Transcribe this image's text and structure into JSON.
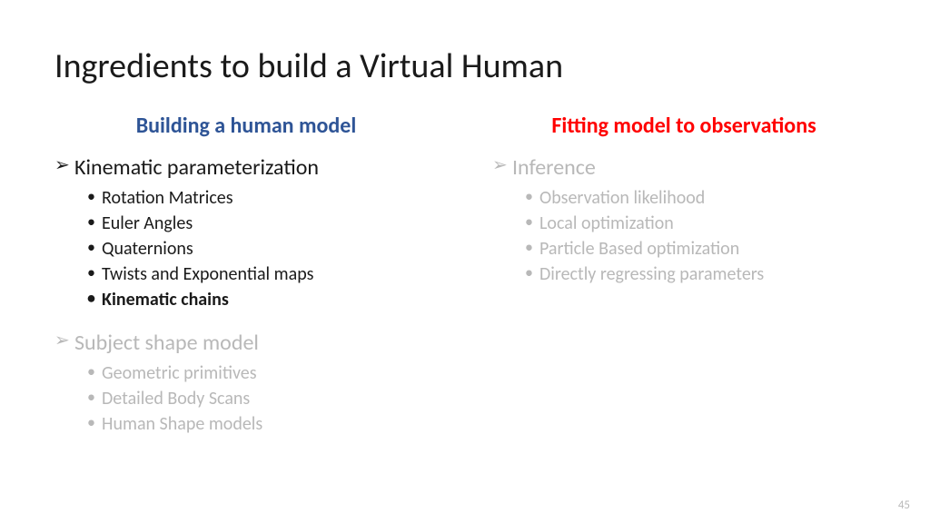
{
  "slide": {
    "title": "Ingredients to build a Virtual Human",
    "page_number": "45",
    "colors": {
      "heading_left": "#2e5496",
      "heading_right": "#ff0000",
      "active_text": "#1a1a1a",
      "dimmed_text": "#b8b8b8",
      "background": "#ffffff"
    },
    "fonts": {
      "title_size_pt": 38,
      "column_header_size_pt": 24,
      "section_title_size_pt": 24,
      "bullet_size_pt": 20,
      "family": "Calibri"
    },
    "columns": {
      "left": {
        "header": "Building a human model",
        "sections": [
          {
            "title": "Kinematic parameterization",
            "state": "active",
            "items": [
              {
                "text": "Rotation Matrices",
                "bold": false
              },
              {
                "text": "Euler Angles",
                "bold": false
              },
              {
                "text": "Quaternions",
                "bold": false
              },
              {
                "text": "Twists and Exponential maps",
                "bold": false
              },
              {
                "text": "Kinematic chains",
                "bold": true
              }
            ]
          },
          {
            "title": "Subject shape model",
            "state": "dimmed",
            "items": [
              {
                "text": "Geometric primitives",
                "bold": false
              },
              {
                "text": "Detailed Body Scans",
                "bold": false
              },
              {
                "text": "Human Shape models",
                "bold": false
              }
            ]
          }
        ]
      },
      "right": {
        "header": "Fitting model to observations",
        "sections": [
          {
            "title": "Inference",
            "state": "dimmed",
            "items": [
              {
                "text": "Observation likelihood",
                "bold": false
              },
              {
                "text": "Local optimization",
                "bold": false
              },
              {
                "text": "Particle Based optimization",
                "bold": false
              },
              {
                "text": "Directly regressing parameters",
                "bold": false
              }
            ]
          }
        ]
      }
    }
  }
}
